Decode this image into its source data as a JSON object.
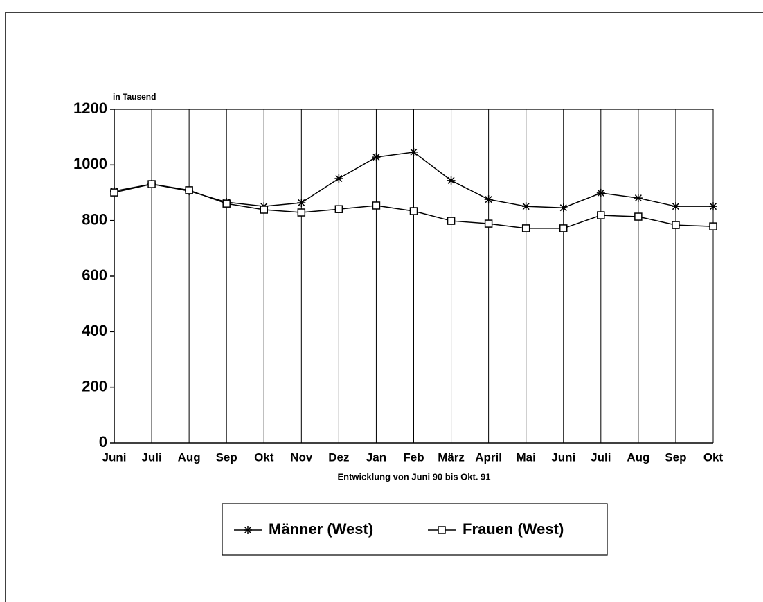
{
  "chart_data": {
    "type": "line",
    "y_label": "in Tausend",
    "x_label": "Entwicklung von Juni 90 bis Okt. 91",
    "categories": [
      "Juni",
      "Juli",
      "Aug",
      "Sep",
      "Okt",
      "Nov",
      "Dez",
      "Jan",
      "Feb",
      "März",
      "April",
      "Mai",
      "Juni",
      "Juli",
      "Aug",
      "Sep",
      "Okt"
    ],
    "series": [
      {
        "name": "Männer (West)",
        "color": "#000000",
        "marker": "star",
        "values": [
          906,
          931,
          906,
          866,
          851,
          864,
          951,
          1028,
          1046,
          944,
          876,
          851,
          846,
          899,
          881,
          851,
          851
        ]
      },
      {
        "name": "Frauen (West)",
        "color": "#000000",
        "marker": "square",
        "values": [
          901,
          931,
          909,
          861,
          839,
          829,
          841,
          854,
          834,
          799,
          789,
          772,
          772,
          819,
          814,
          784,
          779
        ]
      }
    ],
    "ylim": [
      0,
      1200
    ],
    "yticks": [
      0,
      200,
      400,
      600,
      800,
      1000,
      1200
    ],
    "grid": "vertical",
    "legend": "bottom"
  }
}
